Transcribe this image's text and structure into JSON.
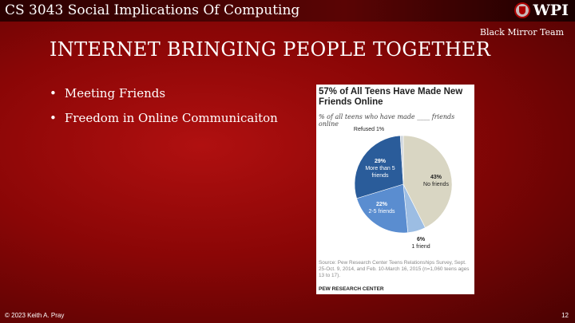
{
  "header": {
    "course": "CS 3043 Social Implications Of Computing",
    "logo_text": "WPI",
    "team": "Black Mirror Team"
  },
  "title": "INTERNET BRINGING PEOPLE TOGETHER",
  "bullets": [
    "Meeting Friends",
    "Freedom in Online Communicaiton"
  ],
  "chart_data": {
    "type": "pie",
    "title": "57% of All Teens Have Made New Friends Online",
    "subtitle": "% of all teens who have made ____ friends online",
    "slices": [
      {
        "label": "No friends",
        "value": 43,
        "pct": "43%",
        "color": "#d9d6c3"
      },
      {
        "label": "1 friend",
        "value": 6,
        "pct": "6%",
        "color": "#9cbde3"
      },
      {
        "label": "2-5 friends",
        "value": 22,
        "pct": "22%",
        "color": "#5a8dd0"
      },
      {
        "label": "More than 5 friends",
        "value": 29,
        "pct": "29%",
        "color": "#2a5c9a"
      },
      {
        "label": "Refused",
        "value": 1,
        "pct": "1%",
        "color": "#cfd6de"
      }
    ],
    "source": "Source: Pew Research Center Teens Relationships Survey, Sept. 25-Oct. 9, 2014, and Feb. 10-March 16, 2015 (n=1,060 teens ages 13 to 17).",
    "credit": "PEW RESEARCH CENTER"
  },
  "footer": {
    "copyright": "© 2023 Keith A. Pray",
    "page": "12"
  }
}
